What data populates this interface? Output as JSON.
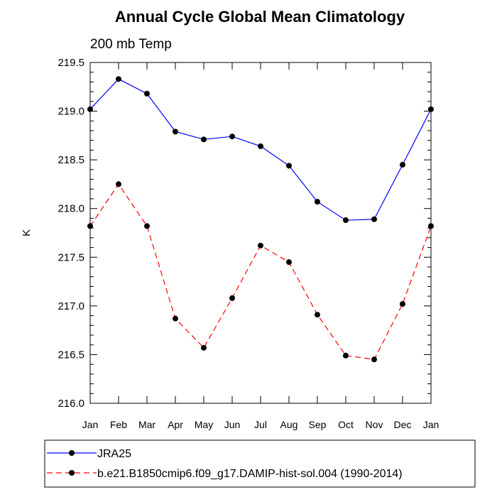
{
  "chart_data": {
    "type": "line",
    "title": "Annual Cycle Global Mean Climatology",
    "subtitle": "200 mb Temp",
    "xlabel": "",
    "ylabel": "K",
    "categories": [
      "Jan",
      "Feb",
      "Mar",
      "Apr",
      "May",
      "Jun",
      "Jul",
      "Aug",
      "Sep",
      "Oct",
      "Nov",
      "Dec",
      "Jan"
    ],
    "ylim": [
      216.0,
      219.5
    ],
    "yticks": [
      "216.0",
      "216.5",
      "217.0",
      "217.5",
      "218.0",
      "218.5",
      "219.0",
      "219.5"
    ],
    "grid": false,
    "legend_position": "bottom",
    "series": [
      {
        "name": "JRA25",
        "color": "#0000ff",
        "line_style": "solid",
        "values": [
          219.02,
          219.33,
          219.18,
          218.79,
          218.71,
          218.74,
          218.64,
          218.44,
          218.07,
          217.88,
          217.89,
          218.45,
          219.02
        ]
      },
      {
        "name": "b.e21.B1850cmip6.f09_g17.DAMIP-hist-sol.004 (1990-2014)",
        "color": "#ff0000",
        "line_style": "dashed",
        "values": [
          217.82,
          218.25,
          217.82,
          216.87,
          216.57,
          217.08,
          217.62,
          217.45,
          216.91,
          216.49,
          216.45,
          217.02,
          217.82
        ]
      }
    ]
  }
}
